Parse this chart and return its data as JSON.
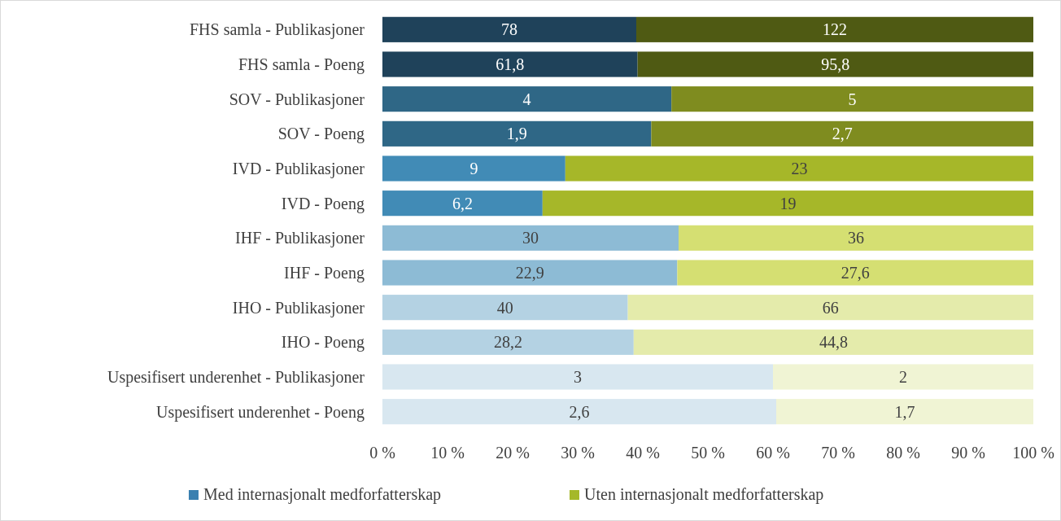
{
  "chart_data": {
    "type": "bar",
    "orientation": "horizontal",
    "stacked": true,
    "categories": [
      "FHS samla - Publikasjoner",
      "FHS samla - Poeng",
      "SOV - Publikasjoner",
      "SOV - Poeng",
      "IVD - Publikasjoner",
      "IVD - Poeng",
      "IHF - Publikasjoner",
      "IHF - Poeng",
      "IHO - Publikasjoner",
      "IHO - Poeng",
      "Uspesifisert underenhet - Publikasjoner",
      "Uspesifisert underenhet - Poeng"
    ],
    "series": [
      {
        "name": "Med internasjonalt medforfatterskap",
        "color": "#3a80b0",
        "colors": [
          "#1f425a",
          "#1f425a",
          "#2f6786",
          "#2f6786",
          "#418bb6",
          "#418bb6",
          "#8dbbd5",
          "#8dbbd5",
          "#b4d2e3",
          "#b4d2e3",
          "#d8e7f0",
          "#d8e7f0"
        ],
        "values": [
          39,
          39.2,
          44.4,
          41.3,
          28.1,
          24.6,
          45.5,
          45.3,
          37.7,
          38.6,
          60,
          60.5
        ]
      },
      {
        "name": "Uten internasjonalt medforfatterskap",
        "color": "#a5b82a",
        "colors": [
          "#4f5a13",
          "#4f5a13",
          "#7f8c1f",
          "#7f8c1f",
          "#a6b729",
          "#a6b729",
          "#d5df72",
          "#d5df72",
          "#e4ebab",
          "#e4ebab",
          "#f0f4d4",
          "#f0f4d4"
        ],
        "values": [
          61,
          60.8,
          55.6,
          58.7,
          71.9,
          75.4,
          54.5,
          54.7,
          62.3,
          61.4,
          40,
          39.5
        ]
      }
    ],
    "annotations": [
      {
        "text": "78",
        "x": 19.5,
        "y": "FHS samla - Publikasjoner"
      },
      {
        "text": "122",
        "x": 69.5,
        "y": "FHS samla - Publikasjoner"
      },
      {
        "text": "61,8",
        "x": 19.6,
        "y": "FHS samla - Poeng"
      },
      {
        "text": "95,8",
        "x": 69.6,
        "y": "FHS samla - Poeng"
      },
      {
        "text": "4",
        "x": 22.2,
        "y": "SOV - Publikasjoner"
      },
      {
        "text": "5",
        "x": 72.2,
        "y": "SOV - Publikasjoner"
      },
      {
        "text": "1,9",
        "x": 20.65,
        "y": "SOV - Poeng"
      },
      {
        "text": "2,7",
        "x": 70.65,
        "y": "SOV - Poeng"
      },
      {
        "text": "9",
        "x": 14.05,
        "y": "IVD - Publikasjoner"
      },
      {
        "text": "23",
        "x": 64.05,
        "y": "IVD - Publikasjoner"
      },
      {
        "text": "6,2",
        "x": 12.3,
        "y": "IVD - Poeng"
      },
      {
        "text": "19",
        "x": 62.3,
        "y": "IVD - Poeng"
      },
      {
        "text": "30",
        "x": 22.75,
        "y": "IHF - Publikasjoner"
      },
      {
        "text": "36",
        "x": 72.75,
        "y": "IHF - Publikasjoner"
      },
      {
        "text": "22,9",
        "x": 22.65,
        "y": "IHF - Poeng"
      },
      {
        "text": "27,6",
        "x": 72.65,
        "y": "IHF - Poeng"
      },
      {
        "text": "40",
        "x": 18.85,
        "y": "IHO - Publikasjoner"
      },
      {
        "text": "66",
        "x": 68.85,
        "y": "IHO - Publikasjoner"
      },
      {
        "text": "28,2",
        "x": 19.3,
        "y": "IHO - Poeng"
      },
      {
        "text": "44,8",
        "x": 69.3,
        "y": "IHO - Poeng"
      },
      {
        "text": "3",
        "x": 30,
        "y": "Uspesifisert underenhet - Publikasjoner"
      },
      {
        "text": "2",
        "x": 80,
        "y": "Uspesifisert underenhet - Publikasjoner"
      },
      {
        "text": "2,6",
        "x": 30.25,
        "y": "Uspesifisert underenhet - Poeng"
      },
      {
        "text": "1,7",
        "x": 80.25,
        "y": "Uspesifisert underenhet - Poeng"
      }
    ],
    "xlim": [
      0,
      100
    ],
    "xticks": [
      {
        "value": 0,
        "label": "0 %"
      },
      {
        "value": 10,
        "label": "10 %"
      },
      {
        "value": 20,
        "label": "20 %"
      },
      {
        "value": 30,
        "label": "30 %"
      },
      {
        "value": 40,
        "label": "40 %"
      },
      {
        "value": 50,
        "label": "50 %"
      },
      {
        "value": 60,
        "label": "60 %"
      },
      {
        "value": 70,
        "label": "70 %"
      },
      {
        "value": 80,
        "label": "80 %"
      },
      {
        "value": 90,
        "label": "90 %"
      },
      {
        "value": 100,
        "label": "100 %"
      }
    ],
    "grid": false,
    "legend": "bottom"
  }
}
